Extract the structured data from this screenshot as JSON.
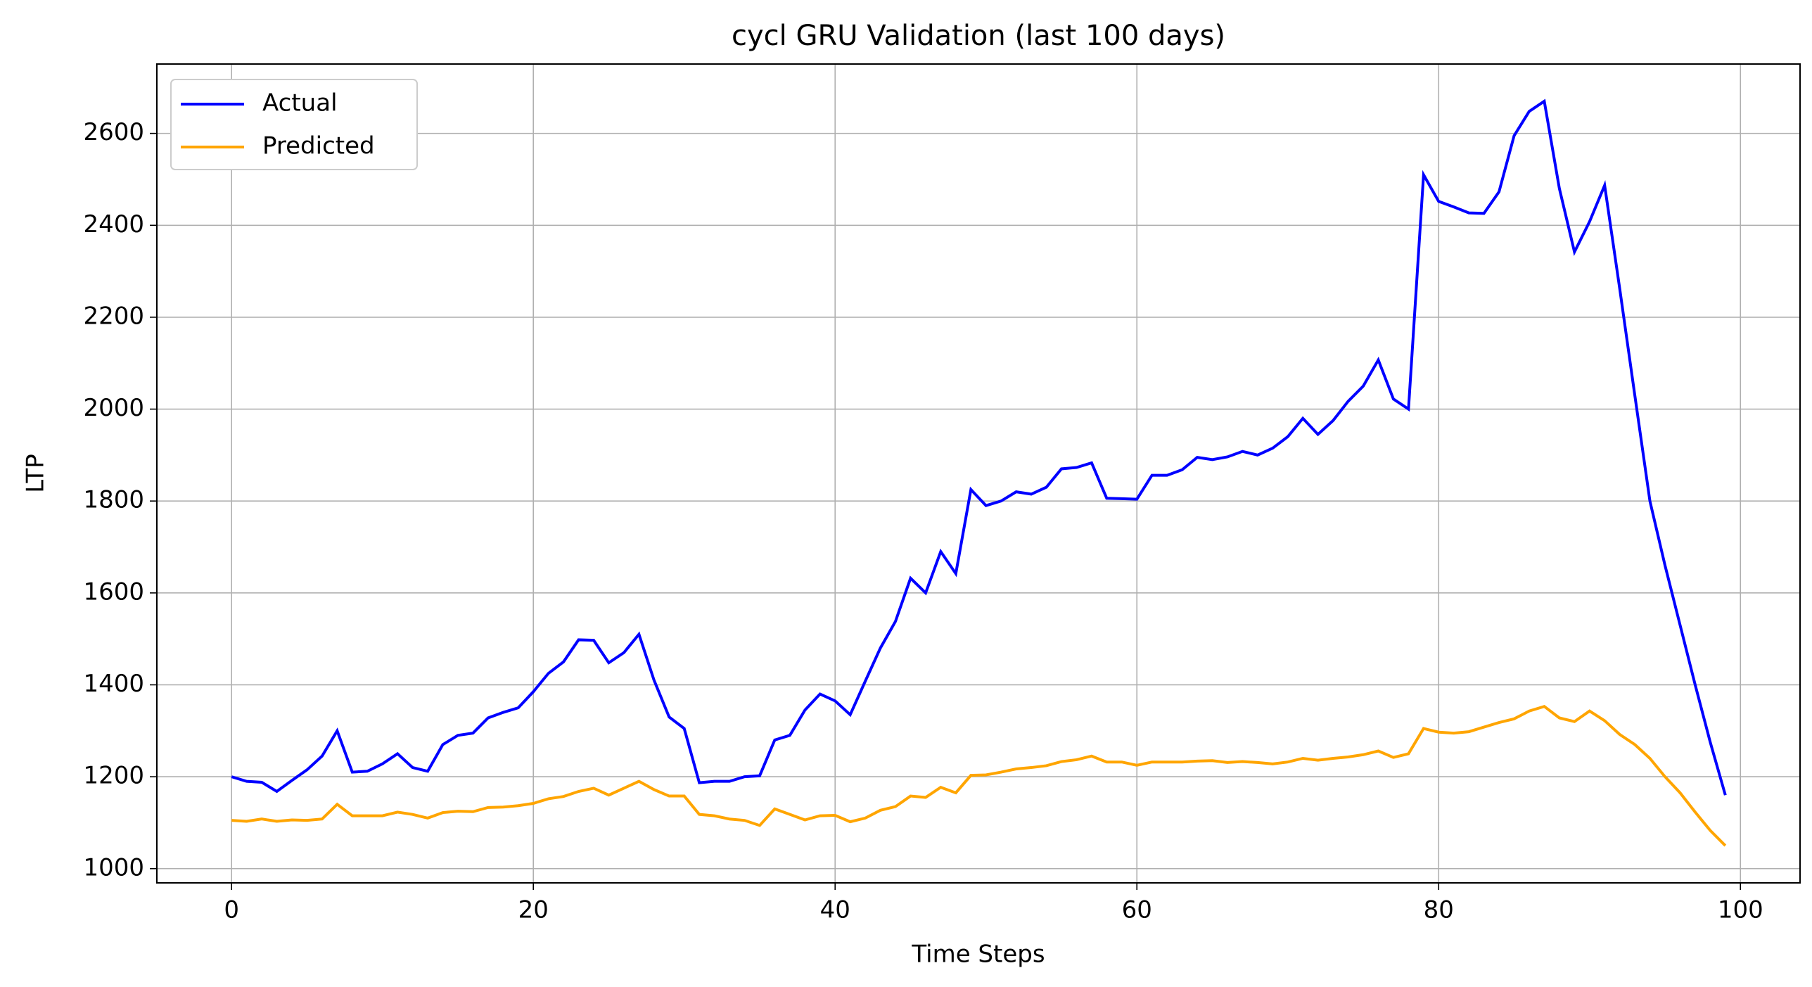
{
  "chart_data": {
    "type": "line",
    "title": "cycl GRU Validation (last 100 days)",
    "x_label": "Time Steps",
    "y_label": "LTP",
    "x": [
      0,
      1,
      2,
      3,
      4,
      5,
      6,
      7,
      8,
      9,
      10,
      11,
      12,
      13,
      14,
      15,
      16,
      17,
      18,
      19,
      20,
      21,
      22,
      23,
      24,
      25,
      26,
      27,
      28,
      29,
      30,
      31,
      32,
      33,
      34,
      35,
      36,
      37,
      38,
      39,
      40,
      41,
      42,
      43,
      44,
      45,
      46,
      47,
      48,
      49,
      50,
      51,
      52,
      53,
      54,
      55,
      56,
      57,
      58,
      59,
      60,
      61,
      62,
      63,
      64,
      65,
      66,
      67,
      68,
      69,
      70,
      71,
      72,
      73,
      74,
      75,
      76,
      77,
      78,
      79,
      80,
      81,
      82,
      83,
      84,
      85,
      86,
      87,
      88,
      89,
      90,
      91,
      92,
      93,
      94,
      95,
      96,
      97,
      98,
      99
    ],
    "series": [
      {
        "name": "Actual",
        "color": "#0000ff",
        "values": [
          1200,
          1190,
          1188,
          1168,
          1192,
          1215,
          1245,
          1300,
          1210,
          1212,
          1228,
          1250,
          1220,
          1212,
          1270,
          1290,
          1295,
          1328,
          1340,
          1350,
          1385,
          1425,
          1450,
          1498,
          1497,
          1448,
          1470,
          1510,
          1410,
          1330,
          1305,
          1187,
          1190,
          1190,
          1200,
          1202,
          1280,
          1290,
          1345,
          1380,
          1365,
          1335,
          1408,
          1480,
          1538,
          1632,
          1600,
          1690,
          1642,
          1825,
          1790,
          1800,
          1820,
          1815,
          1830,
          1870,
          1873,
          1883,
          1806,
          1805,
          1804,
          1856,
          1856,
          1868,
          1895,
          1890,
          1896,
          1908,
          1900,
          1915,
          1940,
          1980,
          1945,
          1975,
          2017,
          2050,
          2107,
          2022,
          2000,
          2510,
          2452,
          2440,
          2427,
          2426,
          2473,
          2595,
          2648,
          2670,
          2480,
          2342,
          2408,
          2487,
          2262,
          2030,
          1800,
          1660,
          1530,
          1400,
          1275,
          1160
        ]
      },
      {
        "name": "Predicted",
        "color": "#ffa500",
        "values": [
          1105,
          1103,
          1108,
          1103,
          1106,
          1105,
          1108,
          1140,
          1115,
          1115,
          1115,
          1123,
          1118,
          1110,
          1122,
          1125,
          1124,
          1133,
          1134,
          1137,
          1142,
          1152,
          1157,
          1168,
          1175,
          1160,
          1175,
          1190,
          1172,
          1158,
          1158,
          1118,
          1115,
          1108,
          1105,
          1094,
          1130,
          1118,
          1106,
          1115,
          1116,
          1102,
          1110,
          1127,
          1135,
          1158,
          1155,
          1177,
          1165,
          1203,
          1204,
          1210,
          1217,
          1220,
          1224,
          1233,
          1237,
          1245,
          1232,
          1232,
          1225,
          1232,
          1232,
          1232,
          1234,
          1235,
          1231,
          1233,
          1231,
          1228,
          1232,
          1240,
          1236,
          1240,
          1243,
          1248,
          1256,
          1242,
          1250,
          1305,
          1297,
          1295,
          1298,
          1308,
          1318,
          1326,
          1343,
          1353,
          1328,
          1320,
          1343,
          1322,
          1292,
          1270,
          1240,
          1200,
          1165,
          1123,
          1083,
          1050
        ]
      }
    ],
    "xlim": [
      -4.95,
      103.95
    ],
    "xticks": [
      0,
      20,
      40,
      60,
      80,
      100
    ],
    "ylim": [
      969,
      2751
    ],
    "yticks": [
      1000,
      1200,
      1400,
      1600,
      1800,
      2000,
      2200,
      2400,
      2600
    ],
    "grid": true,
    "legend": "upper left"
  }
}
